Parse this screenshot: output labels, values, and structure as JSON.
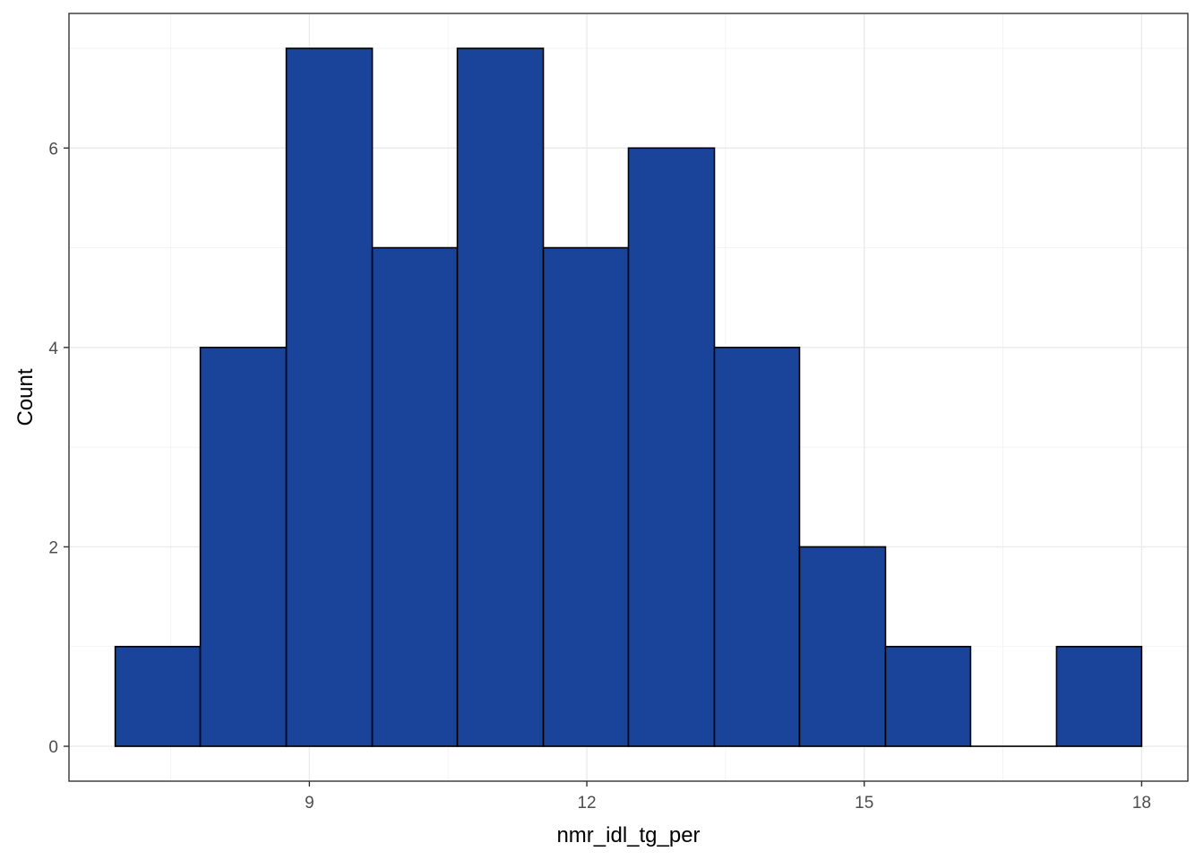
{
  "chart_data": {
    "type": "bar",
    "subtype": "histogram",
    "title": "",
    "xlabel": "nmr_idl_tg_per",
    "ylabel": "Count",
    "bins": [
      {
        "x0": 6.9,
        "x1": 7.82,
        "count": 1
      },
      {
        "x0": 7.82,
        "x1": 8.75,
        "count": 4
      },
      {
        "x0": 8.75,
        "x1": 9.68,
        "count": 7
      },
      {
        "x0": 9.68,
        "x1": 10.6,
        "count": 5
      },
      {
        "x0": 10.6,
        "x1": 11.53,
        "count": 7
      },
      {
        "x0": 11.53,
        "x1": 12.45,
        "count": 5
      },
      {
        "x0": 12.45,
        "x1": 13.38,
        "count": 6
      },
      {
        "x0": 13.38,
        "x1": 14.3,
        "count": 4
      },
      {
        "x0": 14.3,
        "x1": 15.23,
        "count": 2
      },
      {
        "x0": 15.23,
        "x1": 16.15,
        "count": 1
      },
      {
        "x0": 16.15,
        "x1": 17.08,
        "count": 0
      },
      {
        "x0": 17.08,
        "x1": 18.0,
        "count": 1
      }
    ],
    "xlim": [
      6.4,
      18.5
    ],
    "ylim": [
      -0.35,
      7.35
    ],
    "x_ticks": [
      9,
      12,
      15,
      18
    ],
    "y_ticks": [
      0,
      2,
      4,
      6
    ],
    "x_tick_labels": [
      "9",
      "12",
      "15",
      "18"
    ],
    "y_tick_labels": [
      "0",
      "2",
      "4",
      "6"
    ],
    "bar_fill": "#19449A",
    "bar_outline": "#000000",
    "grid": true,
    "legend": "none"
  }
}
